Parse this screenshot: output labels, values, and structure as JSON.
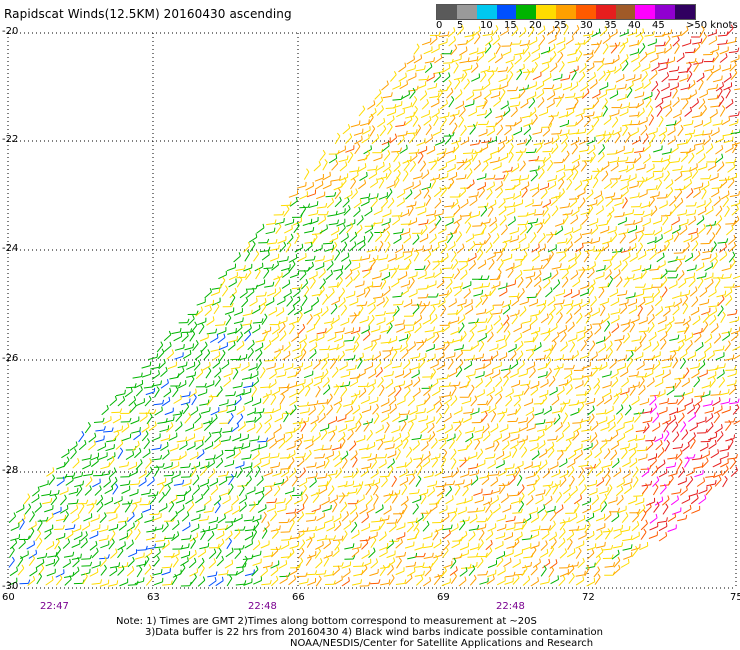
{
  "title": "Rapidscat Winds(12.5KM) 20160430 ascending",
  "legend": {
    "ticks": [
      "0",
      "5",
      "10",
      "15",
      "20",
      "25",
      "30",
      "35",
      "40",
      "45",
      ">50 knots"
    ],
    "colors": [
      "#5a5a5a",
      "#9a9a9a",
      "#00c8f0",
      "#0050ff",
      "#00b400",
      "#ffdc00",
      "#ffa000",
      "#ff5a00",
      "#e61e1e",
      "#a05a28",
      "#ff00ff",
      "#9000d0",
      "#300060"
    ]
  },
  "lat_labels": [
    "-20",
    "-22",
    "-24",
    "-26",
    "-28",
    "-30"
  ],
  "lon_labels": [
    "60",
    "63",
    "66",
    "69",
    "72",
    "75"
  ],
  "time_labels": [
    "22:47",
    "22:48",
    "22:48"
  ],
  "notes": [
    "Note: 1) Times are GMT 2)Times along bottom correspond to measurement at ~20S",
    "3)Data buffer is 22 hrs from 20160430 4) Black wind barbs indicate possible contamination",
    "NOAA/NESDIS/Center for Satellite Applications and Research"
  ]
}
